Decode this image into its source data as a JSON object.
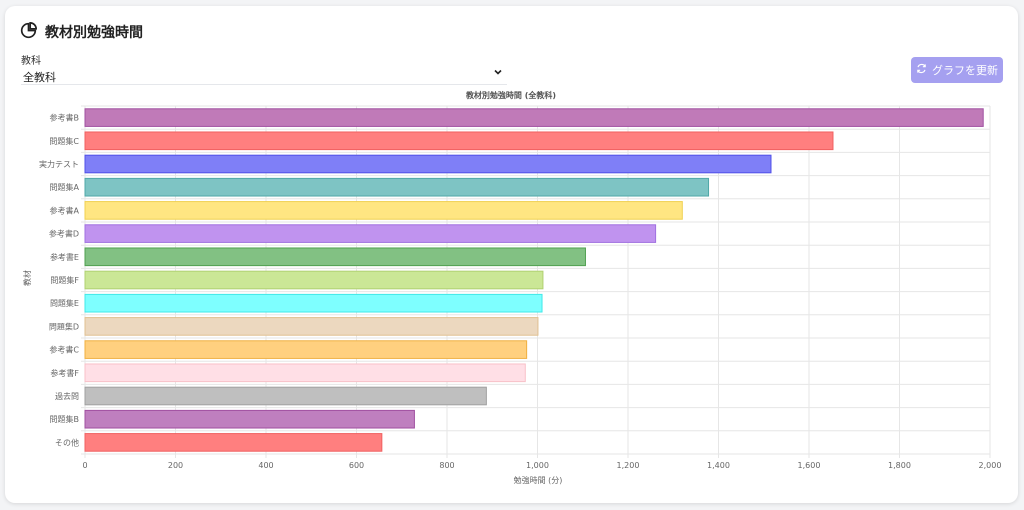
{
  "header": {
    "title": "教材別勉強時間",
    "icon": "pie-chart-icon"
  },
  "filter": {
    "label": "教科",
    "selected": "全教科"
  },
  "refresh_button": {
    "label": "グラフを更新",
    "icon": "refresh-icon",
    "color": "#a5a0f0"
  },
  "chart_data": {
    "type": "bar",
    "orientation": "horizontal",
    "title": "教材別勉強時間 (全教科)",
    "xlabel": "勉強時間 (分)",
    "ylabel": "教材",
    "xlim": [
      0,
      2000
    ],
    "xticks": [
      "0",
      "200",
      "400",
      "600",
      "800",
      "1,000",
      "1,200",
      "1,400",
      "1,600",
      "1,800",
      "2,000"
    ],
    "grid": true,
    "categories": [
      "参考書B",
      "問題集C",
      "実力テスト",
      "問題集A",
      "参考書A",
      "参考書D",
      "参考書E",
      "問題集F",
      "問題集E",
      "問題集D",
      "参考書C",
      "参考書F",
      "過去問",
      "問題集B",
      "その他"
    ],
    "values": [
      1985,
      1653,
      1516,
      1378,
      1320,
      1261,
      1106,
      1012,
      1010,
      1001,
      976,
      973,
      887,
      728,
      656
    ],
    "colors": [
      "#c07ab8",
      "#ff7f7f",
      "#7f7ff7",
      "#7ec4c4",
      "#ffe682",
      "#c093ef",
      "#82c183",
      "#cbe796",
      "#7effff",
      "#ecd8bf",
      "#ffd07f",
      "#ffdfe6",
      "#bfbfbf",
      "#bf7fbf",
      "#ff7f7f"
    ],
    "borders": [
      "#a050a0",
      "#f06060",
      "#5050e8",
      "#50a8a8",
      "#f0d050",
      "#a070e0",
      "#50a050",
      "#b0d070",
      "#40e8e8",
      "#e0c090",
      "#f0b040",
      "#f8c0c8",
      "#a0a0a0",
      "#a050a0",
      "#f06060"
    ]
  }
}
